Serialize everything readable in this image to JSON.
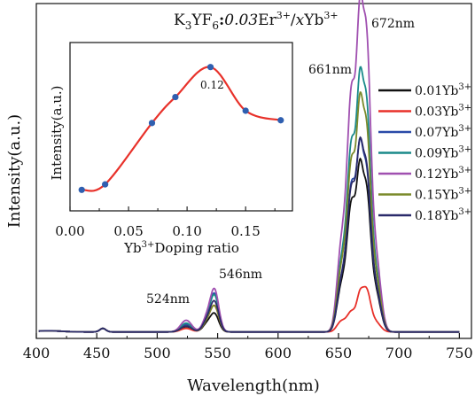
{
  "chart_data": [
    {
      "type": "line",
      "title": "K3YF6:0.03Er3+/xYb3+",
      "title_parts": {
        "k": "K",
        "sub3": "3",
        "yf": "YF",
        "sub6": "6",
        "colon": ":",
        "conc": "0.03",
        "er": "Er",
        "er_sup": "3+",
        "slash": "/",
        "x": "x",
        "yb": "Yb",
        "yb_sup": "3+"
      },
      "xlabel": "Wavelength(nm)",
      "ylabel": "Intensity(a.u.)",
      "xlim": [
        400,
        760
      ],
      "ylim": [
        0,
        1.0
      ],
      "x_ticks": [
        "400",
        "450",
        "500",
        "550",
        "600",
        "650",
        "700",
        "750"
      ],
      "grid": false,
      "legend_position": "right",
      "annotations": [
        "524nm",
        "546nm",
        "661nm",
        "672nm"
      ],
      "peaks": {
        "w524": {
          "x": 524,
          "sigma": 4.5
        },
        "w546": {
          "x": 547.5,
          "sigma": 3.5
        },
        "w541": {
          "x": 541,
          "sigma": 3.5
        },
        "w455": {
          "x": 455,
          "sigma": 2.5
        },
        "w652": {
          "x": 652,
          "sigma": 3.5
        },
        "w661": {
          "x": 661,
          "sigma": 4.0
        },
        "w668": {
          "x": 667.5,
          "sigma": 2.5
        },
        "w673": {
          "x": 673,
          "sigma": 3.5
        },
        "w681": {
          "x": 681,
          "sigma": 4.0
        }
      },
      "series": [
        {
          "name": "0.01Yb",
          "name_sup": "3+",
          "color": "#111111",
          "green": 0.06,
          "g524": 0.018,
          "g541": 0.025,
          "red": 0.45,
          "r673": 0.46,
          "r661": 0.44
        },
        {
          "name": "0.03Yb",
          "name_sup": "3+",
          "color": "#e8312a",
          "green": 0.085,
          "g524": 0.012,
          "g541": 0.03,
          "red": 0.11,
          "r673": 0.14,
          "r661": 0.07
        },
        {
          "name": "0.07Yb",
          "name_sup": "3+",
          "color": "#2a4aa8",
          "green": 0.125,
          "g524": 0.025,
          "g541": 0.04,
          "red": 0.5,
          "r673": 0.52,
          "r661": 0.5
        },
        {
          "name": "0.09Yb",
          "name_sup": "3+",
          "color": "#1a8a8a",
          "green": 0.12,
          "g524": 0.03,
          "g541": 0.04,
          "red": 0.68,
          "r673": 0.74,
          "r661": 0.64
        },
        {
          "name": "0.12Yb",
          "name_sup": "3+",
          "color": "#a050b0",
          "green": 0.14,
          "g524": 0.04,
          "g541": 0.045,
          "red": 0.86,
          "r673": 0.96,
          "r661": 0.82
        },
        {
          "name": "0.15Yb",
          "name_sup": "3+",
          "color": "#7a8a2a",
          "green": 0.085,
          "g524": 0.02,
          "g541": 0.03,
          "red": 0.62,
          "r673": 0.66,
          "r661": 0.58
        },
        {
          "name": "0.18Yb",
          "name_sup": "3+",
          "color": "#2a2a6a",
          "green": 0.1,
          "g524": 0.02,
          "g541": 0.035,
          "red": 0.5,
          "r673": 0.53,
          "r661": 0.49
        }
      ]
    },
    {
      "type": "line",
      "xlabel": "Yb",
      "xlabel_sup": "3+",
      "xlabel_rest": "Doping ratio",
      "ylabel": "Intensity(a.u.)",
      "xlim": [
        0.0,
        0.19
      ],
      "ylim": [
        0,
        1.0
      ],
      "x_ticks": [
        "0.00",
        "0.05",
        "0.10",
        "0.15"
      ],
      "annotation": "0.12",
      "line_color": "#e8312a",
      "marker_color": "#2f5fb0",
      "x": [
        0.01,
        0.03,
        0.07,
        0.09,
        0.12,
        0.15,
        0.18
      ],
      "y": [
        0.05,
        0.09,
        0.54,
        0.73,
        0.95,
        0.63,
        0.56
      ]
    }
  ]
}
